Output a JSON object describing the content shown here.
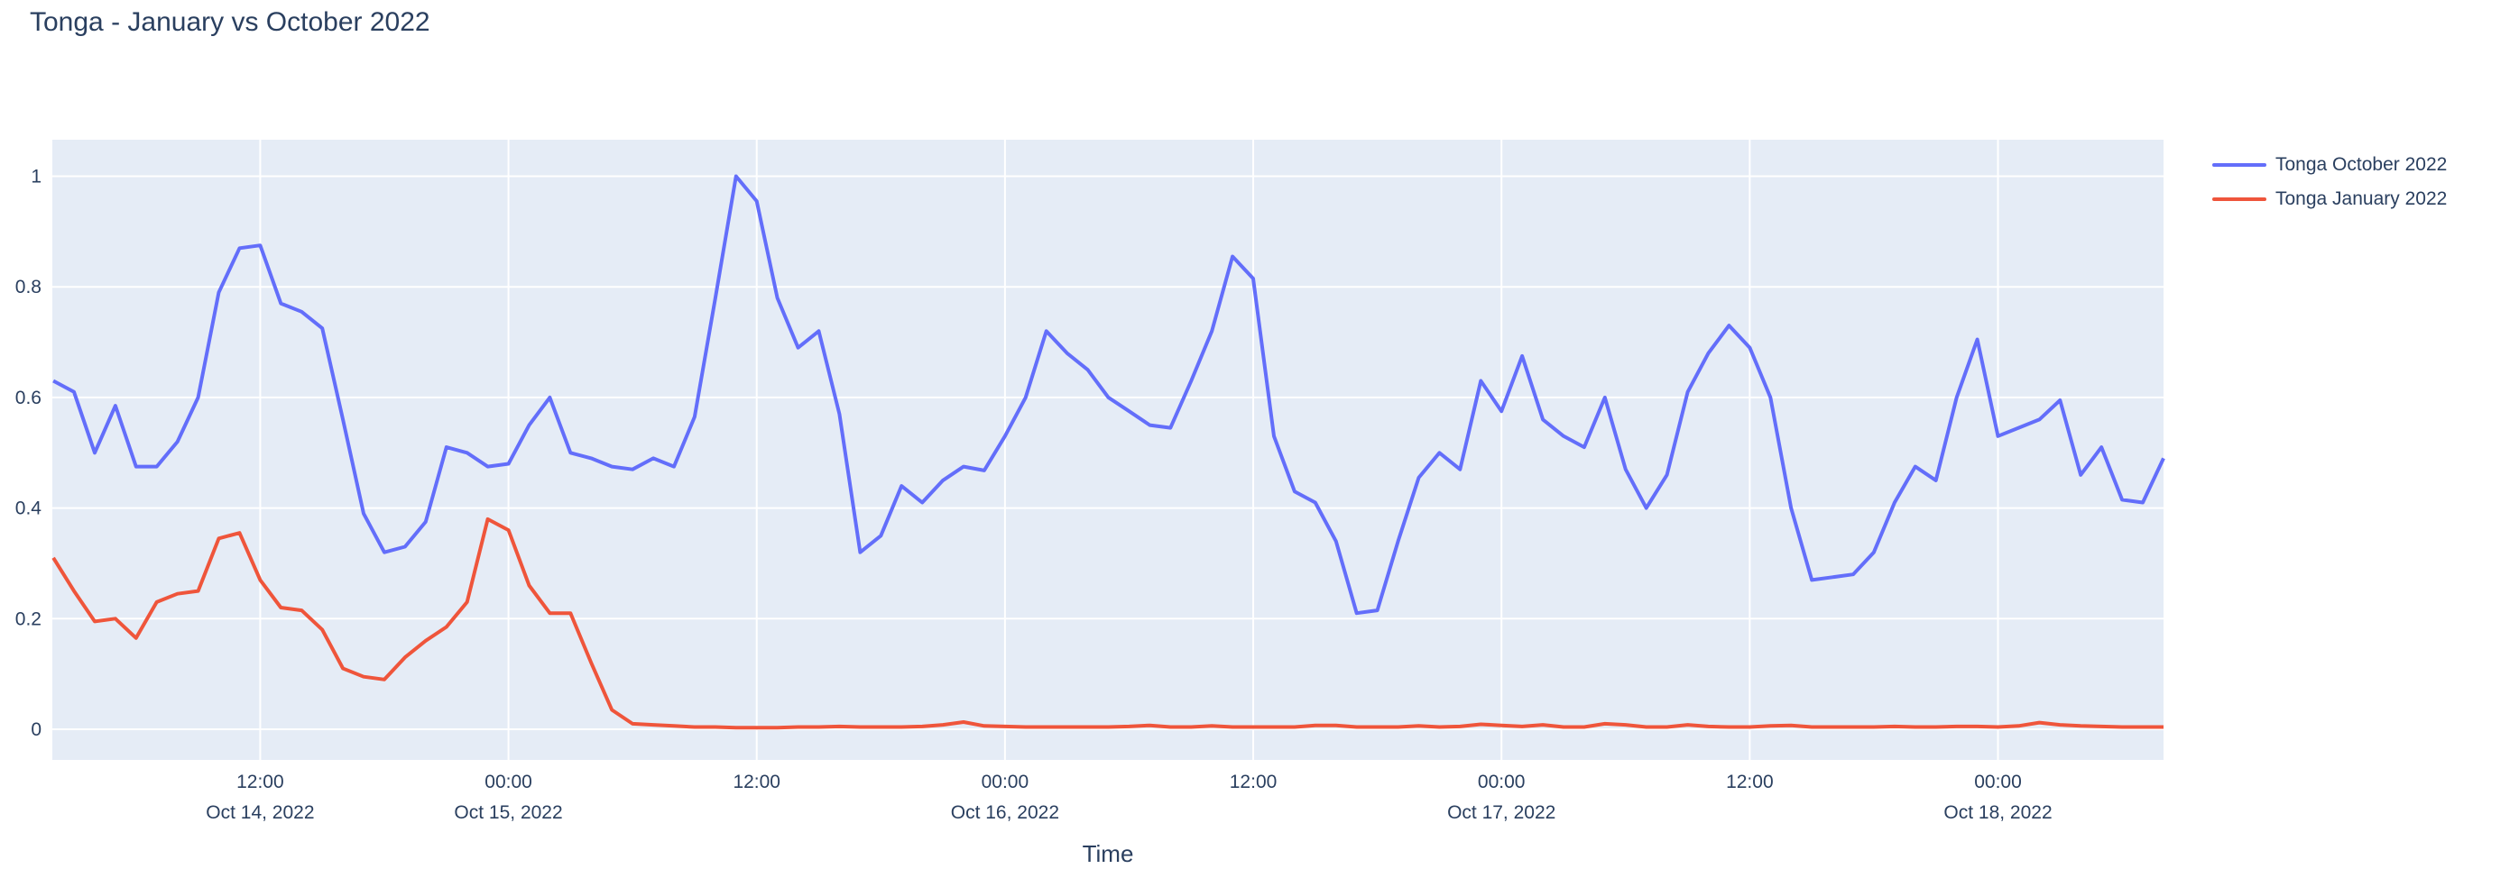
{
  "title": "Tonga - January vs October 2022",
  "colors": {
    "october_line": "#636EFA",
    "january_line": "#EF553B",
    "text": "#2a3f5f",
    "plot_background": "#E5ECF6",
    "gridline": "#FFFFFF",
    "page_background": "#FFFFFF"
  },
  "legend": {
    "items": [
      {
        "label": "Tonga October 2022",
        "color": "#636EFA"
      },
      {
        "label": "Tonga January 2022",
        "color": "#EF553B"
      }
    ]
  },
  "chart_data": {
    "type": "line",
    "title": "Tonga - January vs October 2022",
    "xlabel": "Time",
    "ylabel": "",
    "x_unit": "hours since Oct 14, 2022 02:00",
    "x_start_hour": 0,
    "x_step_hours": 1,
    "xlim_hours": [
      0,
      102
    ],
    "ylim": [
      -0.055,
      1.065
    ],
    "grid": true,
    "legend_position": "right",
    "y_ticks": [
      {
        "value": 0,
        "label": "0"
      },
      {
        "value": 0.2,
        "label": "0.2"
      },
      {
        "value": 0.4,
        "label": "0.4"
      },
      {
        "value": 0.6,
        "label": "0.6"
      },
      {
        "value": 0.8,
        "label": "0.8"
      },
      {
        "value": 1,
        "label": "1"
      }
    ],
    "x_ticks": [
      {
        "hour": 10,
        "time": "12:00",
        "date": "Oct 14, 2022"
      },
      {
        "hour": 22,
        "time": "00:00",
        "date": "Oct 15, 2022"
      },
      {
        "hour": 34,
        "time": "12:00",
        "date": ""
      },
      {
        "hour": 46,
        "time": "00:00",
        "date": "Oct 16, 2022"
      },
      {
        "hour": 58,
        "time": "12:00",
        "date": ""
      },
      {
        "hour": 70,
        "time": "00:00",
        "date": "Oct 17, 2022"
      },
      {
        "hour": 82,
        "time": "12:00",
        "date": ""
      },
      {
        "hour": 94,
        "time": "00:00",
        "date": "Oct 18, 2022"
      }
    ],
    "series": [
      {
        "name": "Tonga October 2022",
        "color": "#636EFA",
        "values": [
          0.63,
          0.61,
          0.5,
          0.585,
          0.475,
          0.475,
          0.52,
          0.6,
          0.79,
          0.87,
          0.875,
          0.77,
          0.755,
          0.725,
          0.56,
          0.39,
          0.32,
          0.33,
          0.375,
          0.51,
          0.5,
          0.475,
          0.48,
          0.55,
          0.6,
          0.5,
          0.49,
          0.475,
          0.47,
          0.49,
          0.475,
          0.565,
          0.78,
          1.0,
          0.955,
          0.78,
          0.69,
          0.72,
          0.57,
          0.32,
          0.35,
          0.44,
          0.41,
          0.45,
          0.475,
          0.468,
          0.53,
          0.6,
          0.72,
          0.68,
          0.65,
          0.6,
          0.575,
          0.55,
          0.545,
          0.63,
          0.72,
          0.855,
          0.815,
          0.53,
          0.43,
          0.41,
          0.34,
          0.21,
          0.215,
          0.34,
          0.455,
          0.5,
          0.47,
          0.63,
          0.575,
          0.675,
          0.56,
          0.53,
          0.51,
          0.6,
          0.47,
          0.4,
          0.46,
          0.61,
          0.68,
          0.73,
          0.69,
          0.6,
          0.4,
          0.27,
          0.275,
          0.28,
          0.32,
          0.41,
          0.475,
          0.45,
          0.6,
          0.705,
          0.53,
          0.545,
          0.56,
          0.595,
          0.46,
          0.51,
          0.415,
          0.41,
          0.49
        ]
      },
      {
        "name": "Tonga January 2022",
        "color": "#EF553B",
        "values": [
          0.31,
          0.25,
          0.195,
          0.2,
          0.165,
          0.23,
          0.245,
          0.25,
          0.345,
          0.355,
          0.27,
          0.22,
          0.215,
          0.18,
          0.11,
          0.095,
          0.09,
          0.13,
          0.16,
          0.185,
          0.23,
          0.38,
          0.36,
          0.26,
          0.21,
          0.21,
          0.12,
          0.035,
          0.01,
          0.008,
          0.006,
          0.004,
          0.004,
          0.003,
          0.003,
          0.003,
          0.004,
          0.004,
          0.005,
          0.004,
          0.004,
          0.004,
          0.005,
          0.008,
          0.013,
          0.006,
          0.005,
          0.004,
          0.004,
          0.004,
          0.004,
          0.004,
          0.005,
          0.007,
          0.004,
          0.004,
          0.006,
          0.004,
          0.004,
          0.004,
          0.004,
          0.007,
          0.007,
          0.004,
          0.004,
          0.004,
          0.006,
          0.004,
          0.005,
          0.009,
          0.007,
          0.005,
          0.008,
          0.004,
          0.004,
          0.01,
          0.008,
          0.004,
          0.004,
          0.008,
          0.005,
          0.004,
          0.004,
          0.006,
          0.007,
          0.004,
          0.004,
          0.004,
          0.004,
          0.005,
          0.004,
          0.004,
          0.005,
          0.005,
          0.004,
          0.006,
          0.012,
          0.008,
          0.006,
          0.005,
          0.004,
          0.004,
          0.004
        ]
      }
    ]
  },
  "axes": {
    "x_title": "Time"
  }
}
